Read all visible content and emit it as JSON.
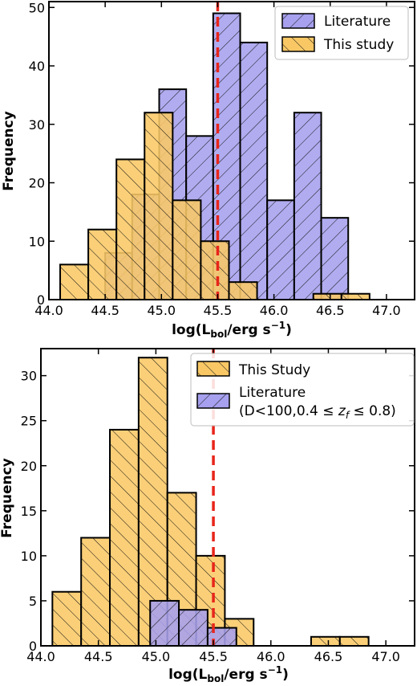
{
  "chart_data": [
    {
      "type": "bar",
      "panel": "top",
      "xlabel": "log(Lbol/erg s−1)",
      "ylabel": "Frequency",
      "xlim": [
        44.0,
        47.25
      ],
      "ylim": [
        0,
        51
      ],
      "xticks": [
        "44.0",
        "44.5",
        "45.0",
        "45.5",
        "46.0",
        "46.5",
        "47.0"
      ],
      "yticks": [
        "0",
        "10",
        "20",
        "30",
        "40",
        "50"
      ],
      "reference_line": {
        "x": 45.5,
        "color": "#e8251a",
        "style": "dashed"
      },
      "legend": {
        "placement": "top-right",
        "entries": [
          "Literature",
          "This study"
        ]
      },
      "series": [
        {
          "name": "Literature",
          "color": "#a6a0ee",
          "hatch": "//",
          "bins": [
            {
              "x0": 44.5,
              "x1": 44.74,
              "value": 8
            },
            {
              "x0": 44.74,
              "x1": 44.98,
              "value": 18
            },
            {
              "x0": 44.98,
              "x1": 45.22,
              "value": 36
            },
            {
              "x0": 45.22,
              "x1": 45.46,
              "value": 28
            },
            {
              "x0": 45.46,
              "x1": 45.7,
              "value": 49
            },
            {
              "x0": 45.7,
              "x1": 45.94,
              "value": 44
            },
            {
              "x0": 45.94,
              "x1": 46.18,
              "value": 17
            },
            {
              "x0": 46.18,
              "x1": 46.42,
              "value": 32
            },
            {
              "x0": 46.42,
              "x1": 46.66,
              "value": 14
            }
          ]
        },
        {
          "name": "This study",
          "color": "#f9c865",
          "hatch": "\\\\",
          "bins": [
            {
              "x0": 44.1,
              "x1": 44.35,
              "value": 6
            },
            {
              "x0": 44.35,
              "x1": 44.6,
              "value": 12
            },
            {
              "x0": 44.6,
              "x1": 44.85,
              "value": 24
            },
            {
              "x0": 44.85,
              "x1": 45.1,
              "value": 32
            },
            {
              "x0": 45.1,
              "x1": 45.35,
              "value": 17
            },
            {
              "x0": 45.35,
              "x1": 45.6,
              "value": 10
            },
            {
              "x0": 45.6,
              "x1": 45.85,
              "value": 3
            },
            {
              "x0": 45.85,
              "x1": 46.1,
              "value": 0
            },
            {
              "x0": 46.1,
              "x1": 46.35,
              "value": 0
            },
            {
              "x0": 46.35,
              "x1": 46.6,
              "value": 1
            },
            {
              "x0": 46.6,
              "x1": 46.85,
              "value": 1
            }
          ]
        }
      ]
    },
    {
      "type": "bar",
      "panel": "bottom",
      "xlabel": "log(Lbol/erg s−1)",
      "ylabel": "Frequency",
      "xlim": [
        44.0,
        47.25
      ],
      "ylim": [
        0,
        33
      ],
      "xticks": [
        "44.0",
        "44.5",
        "45.0",
        "45.5",
        "46.0",
        "46.5",
        "47.0"
      ],
      "yticks": [
        "0",
        "5",
        "10",
        "15",
        "20",
        "25",
        "30"
      ],
      "reference_line": {
        "x": 45.5,
        "color": "#e8251a",
        "style": "dashed"
      },
      "legend": {
        "placement": "top-right",
        "entries": [
          "This Study",
          "Literature",
          "(D<100,0.4 ≤ zf ≤ 0.8)"
        ]
      },
      "series": [
        {
          "name": "This Study",
          "color": "#f9c865",
          "hatch": "\\\\",
          "bins": [
            {
              "x0": 44.1,
              "x1": 44.35,
              "value": 6
            },
            {
              "x0": 44.35,
              "x1": 44.6,
              "value": 12
            },
            {
              "x0": 44.6,
              "x1": 44.85,
              "value": 24
            },
            {
              "x0": 44.85,
              "x1": 45.1,
              "value": 32
            },
            {
              "x0": 45.1,
              "x1": 45.35,
              "value": 17
            },
            {
              "x0": 45.35,
              "x1": 45.6,
              "value": 10
            },
            {
              "x0": 45.6,
              "x1": 45.85,
              "value": 3
            },
            {
              "x0": 45.85,
              "x1": 46.1,
              "value": 0
            },
            {
              "x0": 46.1,
              "x1": 46.35,
              "value": 0
            },
            {
              "x0": 46.35,
              "x1": 46.6,
              "value": 1
            },
            {
              "x0": 46.6,
              "x1": 46.85,
              "value": 1
            }
          ]
        },
        {
          "name": "Literature",
          "label_line2": "(D<100,0.4 ≤ zf ≤ 0.8)",
          "color": "#a6a0ee",
          "hatch": "//",
          "bins": [
            {
              "x0": 44.95,
              "x1": 45.2,
              "value": 5
            },
            {
              "x0": 45.2,
              "x1": 45.45,
              "value": 4
            },
            {
              "x0": 45.45,
              "x1": 45.7,
              "value": 2
            }
          ]
        }
      ]
    }
  ]
}
